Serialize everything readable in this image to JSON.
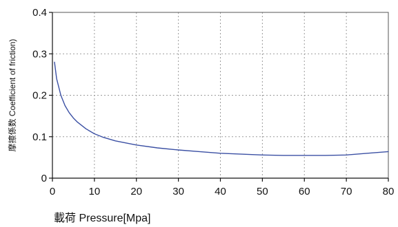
{
  "chart_data": {
    "type": "line",
    "title": "",
    "xlabel": "載荷 Pressure[Mpa]",
    "ylabel": "摩擦係数 Coefficient of friction)",
    "xlim": [
      0,
      80
    ],
    "ylim": [
      0,
      0.4
    ],
    "xticks": [
      0,
      10,
      20,
      30,
      40,
      50,
      60,
      70,
      80
    ],
    "yticks": [
      0,
      0.1,
      0.2,
      0.3,
      0.4
    ],
    "xtick_labels": [
      "0",
      "10",
      "20",
      "30",
      "40",
      "50",
      "60",
      "70",
      "80"
    ],
    "ytick_labels": [
      "0",
      "0.1",
      "0.2",
      "0.3",
      "0.4"
    ],
    "grid": true,
    "legend": "none",
    "series": [
      {
        "color": "#3a4fa3",
        "x": [
          0.5,
          1,
          2,
          3,
          4,
          5,
          6,
          8,
          10,
          12,
          15,
          20,
          25,
          30,
          35,
          40,
          45,
          50,
          55,
          60,
          65,
          70,
          75,
          80
        ],
        "y": [
          0.28,
          0.24,
          0.2,
          0.175,
          0.158,
          0.145,
          0.135,
          0.119,
          0.107,
          0.099,
          0.09,
          0.08,
          0.073,
          0.068,
          0.064,
          0.06,
          0.058,
          0.056,
          0.055,
          0.055,
          0.055,
          0.056,
          0.06,
          0.064
        ]
      }
    ]
  }
}
